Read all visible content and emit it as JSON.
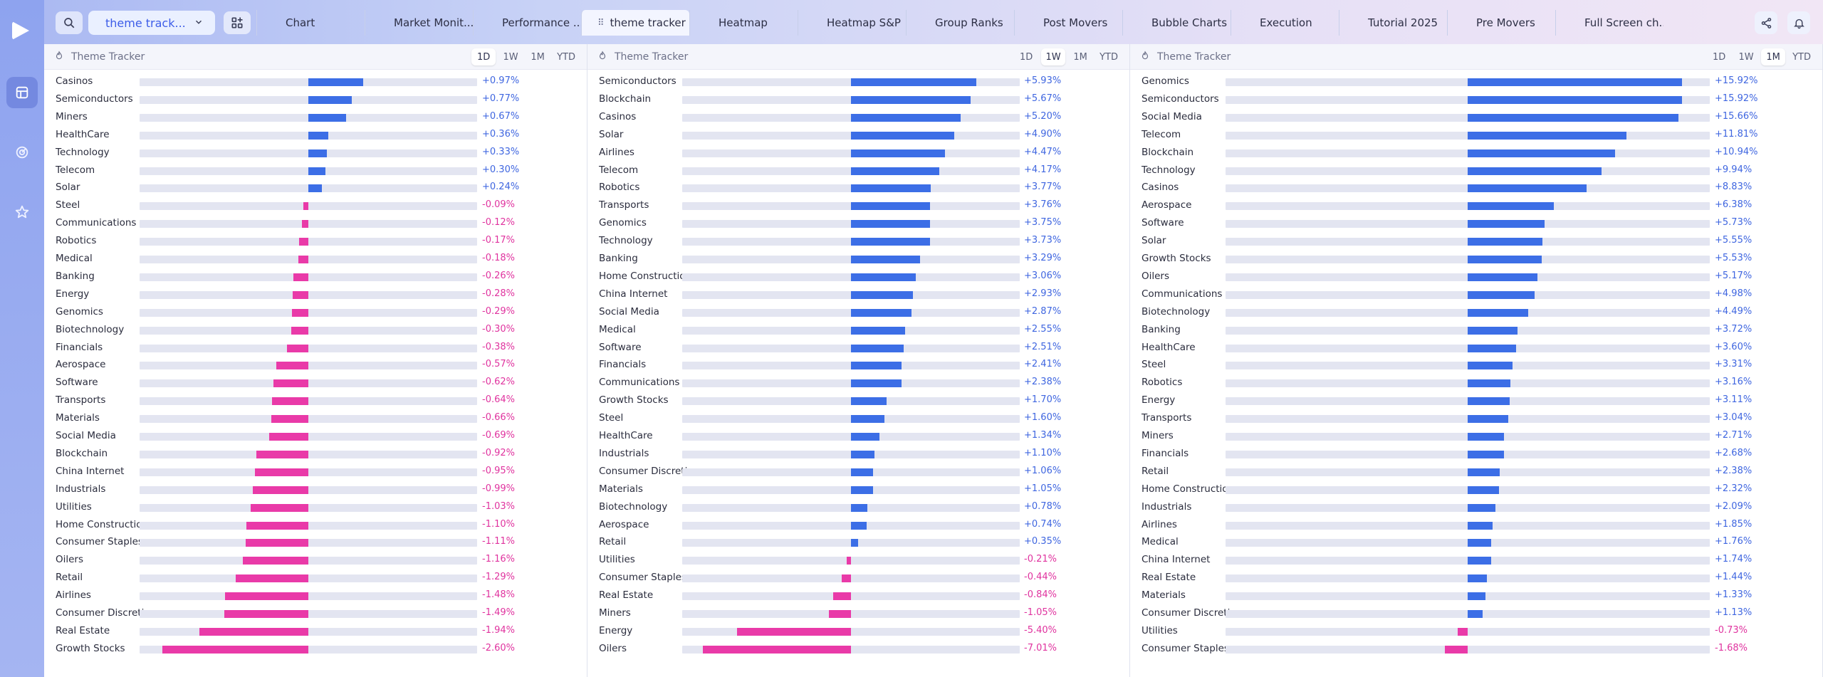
{
  "app": {
    "colors": {
      "positive": "#3c6ee6",
      "negative": "#e93aa8",
      "accent": "#3d5de8"
    }
  },
  "sidebar": {
    "items": [
      {
        "icon": "play-logo-icon"
      },
      {
        "icon": "layout-icon"
      },
      {
        "icon": "radar-icon"
      },
      {
        "icon": "star-icon"
      }
    ]
  },
  "toolbar": {
    "dropdown_label": "theme track..."
  },
  "tabs": [
    {
      "label": "Chart"
    },
    {
      "label": "Market Monit..."
    },
    {
      "label": "Performance ..."
    },
    {
      "label": "theme tracker",
      "active": true
    },
    {
      "label": "Heatmap"
    },
    {
      "label": "Heatmap S&P"
    },
    {
      "label": "Group Ranks"
    },
    {
      "label": "Post Movers"
    },
    {
      "label": "Bubble Charts"
    },
    {
      "label": "Execution"
    },
    {
      "label": "Tutorial 2025"
    },
    {
      "label": "Pre Movers"
    },
    {
      "label": "Full Screen ch..."
    }
  ],
  "periods": [
    "1D",
    "1W",
    "1M",
    "YTD"
  ],
  "panels": [
    {
      "title": "Theme Tracker",
      "active_period": "1D",
      "scale_max": 3.0,
      "rows": [
        {
          "name": "Casinos",
          "value": 0.97,
          "label": "+0.97%"
        },
        {
          "name": "Semiconductors",
          "value": 0.77,
          "label": "+0.77%"
        },
        {
          "name": "Miners",
          "value": 0.67,
          "label": "+0.67%"
        },
        {
          "name": "HealthCare",
          "value": 0.36,
          "label": "+0.36%"
        },
        {
          "name": "Technology",
          "value": 0.33,
          "label": "+0.33%"
        },
        {
          "name": "Telecom",
          "value": 0.3,
          "label": "+0.30%"
        },
        {
          "name": "Solar",
          "value": 0.24,
          "label": "+0.24%"
        },
        {
          "name": "Steel",
          "value": -0.09,
          "label": "-0.09%"
        },
        {
          "name": "Communications",
          "value": -0.12,
          "label": "-0.12%"
        },
        {
          "name": "Robotics",
          "value": -0.17,
          "label": "-0.17%"
        },
        {
          "name": "Medical",
          "value": -0.18,
          "label": "-0.18%"
        },
        {
          "name": "Banking",
          "value": -0.26,
          "label": "-0.26%"
        },
        {
          "name": "Energy",
          "value": -0.28,
          "label": "-0.28%"
        },
        {
          "name": "Genomics",
          "value": -0.29,
          "label": "-0.29%"
        },
        {
          "name": "Biotechnology",
          "value": -0.3,
          "label": "-0.30%"
        },
        {
          "name": "Financials",
          "value": -0.38,
          "label": "-0.38%"
        },
        {
          "name": "Aerospace",
          "value": -0.57,
          "label": "-0.57%"
        },
        {
          "name": "Software",
          "value": -0.62,
          "label": "-0.62%"
        },
        {
          "name": "Transports",
          "value": -0.64,
          "label": "-0.64%"
        },
        {
          "name": "Materials",
          "value": -0.66,
          "label": "-0.66%"
        },
        {
          "name": "Social Media",
          "value": -0.69,
          "label": "-0.69%"
        },
        {
          "name": "Blockchain",
          "value": -0.92,
          "label": "-0.92%"
        },
        {
          "name": "China Internet",
          "value": -0.95,
          "label": "-0.95%"
        },
        {
          "name": "Industrials",
          "value": -0.99,
          "label": "-0.99%"
        },
        {
          "name": "Utilities",
          "value": -1.03,
          "label": "-1.03%"
        },
        {
          "name": "Home Construction",
          "value": -1.1,
          "label": "-1.10%"
        },
        {
          "name": "Consumer Staples",
          "value": -1.11,
          "label": "-1.11%"
        },
        {
          "name": "Oilers",
          "value": -1.16,
          "label": "-1.16%"
        },
        {
          "name": "Retail",
          "value": -1.29,
          "label": "-1.29%"
        },
        {
          "name": "Airlines",
          "value": -1.48,
          "label": "-1.48%"
        },
        {
          "name": "Consumer Discretionary",
          "value": -1.49,
          "label": "-1.49%"
        },
        {
          "name": "Real Estate",
          "value": -1.94,
          "label": "-1.94%"
        },
        {
          "name": "Growth Stocks",
          "value": -2.6,
          "label": "-2.60%"
        }
      ]
    },
    {
      "title": "Theme Tracker",
      "active_period": "1W",
      "scale_max": 8.0,
      "rows": [
        {
          "name": "Semiconductors",
          "value": 5.93,
          "label": "+5.93%"
        },
        {
          "name": "Blockchain",
          "value": 5.67,
          "label": "+5.67%"
        },
        {
          "name": "Casinos",
          "value": 5.2,
          "label": "+5.20%"
        },
        {
          "name": "Solar",
          "value": 4.9,
          "label": "+4.90%"
        },
        {
          "name": "Airlines",
          "value": 4.47,
          "label": "+4.47%"
        },
        {
          "name": "Telecom",
          "value": 4.17,
          "label": "+4.17%"
        },
        {
          "name": "Robotics",
          "value": 3.77,
          "label": "+3.77%"
        },
        {
          "name": "Transports",
          "value": 3.76,
          "label": "+3.76%"
        },
        {
          "name": "Genomics",
          "value": 3.75,
          "label": "+3.75%"
        },
        {
          "name": "Technology",
          "value": 3.73,
          "label": "+3.73%"
        },
        {
          "name": "Banking",
          "value": 3.29,
          "label": "+3.29%"
        },
        {
          "name": "Home Construction",
          "value": 3.06,
          "label": "+3.06%"
        },
        {
          "name": "China Internet",
          "value": 2.93,
          "label": "+2.93%"
        },
        {
          "name": "Social Media",
          "value": 2.87,
          "label": "+2.87%"
        },
        {
          "name": "Medical",
          "value": 2.55,
          "label": "+2.55%"
        },
        {
          "name": "Software",
          "value": 2.51,
          "label": "+2.51%"
        },
        {
          "name": "Financials",
          "value": 2.41,
          "label": "+2.41%"
        },
        {
          "name": "Communications",
          "value": 2.38,
          "label": "+2.38%"
        },
        {
          "name": "Growth Stocks",
          "value": 1.7,
          "label": "+1.70%"
        },
        {
          "name": "Steel",
          "value": 1.6,
          "label": "+1.60%"
        },
        {
          "name": "HealthCare",
          "value": 1.34,
          "label": "+1.34%"
        },
        {
          "name": "Industrials",
          "value": 1.1,
          "label": "+1.10%"
        },
        {
          "name": "Consumer Discretionary",
          "value": 1.06,
          "label": "+1.06%"
        },
        {
          "name": "Materials",
          "value": 1.05,
          "label": "+1.05%"
        },
        {
          "name": "Biotechnology",
          "value": 0.78,
          "label": "+0.78%"
        },
        {
          "name": "Aerospace",
          "value": 0.74,
          "label": "+0.74%"
        },
        {
          "name": "Retail",
          "value": 0.35,
          "label": "+0.35%"
        },
        {
          "name": "Utilities",
          "value": -0.21,
          "label": "-0.21%"
        },
        {
          "name": "Consumer Staples",
          "value": -0.44,
          "label": "-0.44%"
        },
        {
          "name": "Real Estate",
          "value": -0.84,
          "label": "-0.84%"
        },
        {
          "name": "Miners",
          "value": -1.05,
          "label": "-1.05%"
        },
        {
          "name": "Energy",
          "value": -5.4,
          "label": "-5.40%"
        },
        {
          "name": "Oilers",
          "value": -7.01,
          "label": "-7.01%"
        }
      ]
    },
    {
      "title": "Theme Tracker",
      "active_period": "1M",
      "scale_max": 18.0,
      "rows": [
        {
          "name": "Genomics",
          "value": 15.92,
          "label": "+15.92%"
        },
        {
          "name": "Semiconductors",
          "value": 15.92,
          "label": "+15.92%"
        },
        {
          "name": "Social Media",
          "value": 15.66,
          "label": "+15.66%"
        },
        {
          "name": "Telecom",
          "value": 11.81,
          "label": "+11.81%"
        },
        {
          "name": "Blockchain",
          "value": 10.94,
          "label": "+10.94%"
        },
        {
          "name": "Technology",
          "value": 9.94,
          "label": "+9.94%"
        },
        {
          "name": "Casinos",
          "value": 8.83,
          "label": "+8.83%"
        },
        {
          "name": "Aerospace",
          "value": 6.38,
          "label": "+6.38%"
        },
        {
          "name": "Software",
          "value": 5.73,
          "label": "+5.73%"
        },
        {
          "name": "Solar",
          "value": 5.55,
          "label": "+5.55%"
        },
        {
          "name": "Growth Stocks",
          "value": 5.53,
          "label": "+5.53%"
        },
        {
          "name": "Oilers",
          "value": 5.17,
          "label": "+5.17%"
        },
        {
          "name": "Communications",
          "value": 4.98,
          "label": "+4.98%"
        },
        {
          "name": "Biotechnology",
          "value": 4.49,
          "label": "+4.49%"
        },
        {
          "name": "Banking",
          "value": 3.72,
          "label": "+3.72%"
        },
        {
          "name": "HealthCare",
          "value": 3.6,
          "label": "+3.60%"
        },
        {
          "name": "Steel",
          "value": 3.31,
          "label": "+3.31%"
        },
        {
          "name": "Robotics",
          "value": 3.16,
          "label": "+3.16%"
        },
        {
          "name": "Energy",
          "value": 3.11,
          "label": "+3.11%"
        },
        {
          "name": "Transports",
          "value": 3.04,
          "label": "+3.04%"
        },
        {
          "name": "Miners",
          "value": 2.71,
          "label": "+2.71%"
        },
        {
          "name": "Financials",
          "value": 2.68,
          "label": "+2.68%"
        },
        {
          "name": "Retail",
          "value": 2.38,
          "label": "+2.38%"
        },
        {
          "name": "Home Construction",
          "value": 2.32,
          "label": "+2.32%"
        },
        {
          "name": "Industrials",
          "value": 2.09,
          "label": "+2.09%"
        },
        {
          "name": "Airlines",
          "value": 1.85,
          "label": "+1.85%"
        },
        {
          "name": "Medical",
          "value": 1.76,
          "label": "+1.76%"
        },
        {
          "name": "China Internet",
          "value": 1.74,
          "label": "+1.74%"
        },
        {
          "name": "Real Estate",
          "value": 1.44,
          "label": "+1.44%"
        },
        {
          "name": "Materials",
          "value": 1.33,
          "label": "+1.33%"
        },
        {
          "name": "Consumer Discretionary",
          "value": 1.13,
          "label": "+1.13%"
        },
        {
          "name": "Utilities",
          "value": -0.73,
          "label": "-0.73%"
        },
        {
          "name": "Consumer Staples",
          "value": -1.68,
          "label": "-1.68%"
        }
      ]
    }
  ]
}
